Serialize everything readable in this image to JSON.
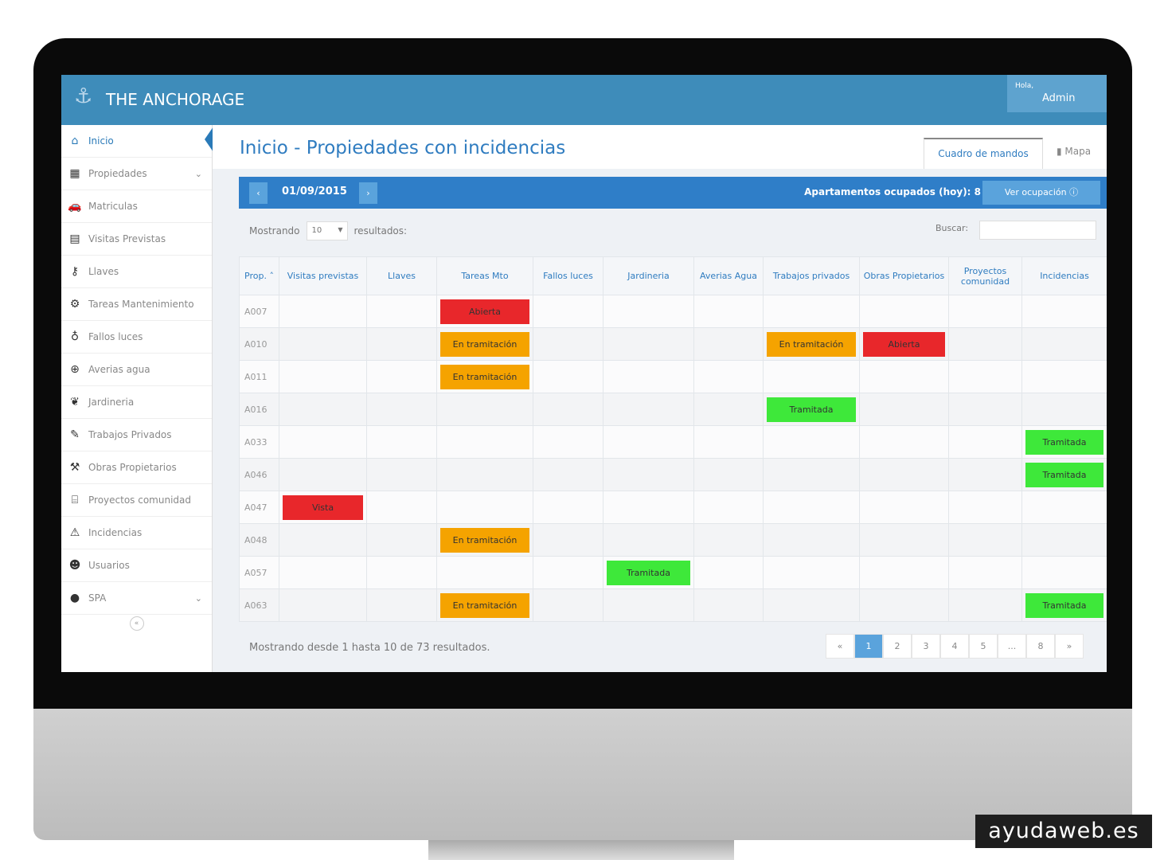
{
  "app": {
    "brand": "THE ANCHORAGE",
    "greeting": "Hola,",
    "user": "Admin"
  },
  "sidebar": {
    "items": [
      {
        "label": "Inicio",
        "icon": "home-icon",
        "glyph": "⌂",
        "active": true
      },
      {
        "label": "Propiedades",
        "icon": "building-icon",
        "glyph": "▦",
        "chevron": true
      },
      {
        "label": "Matriculas",
        "icon": "car-icon",
        "glyph": "🚗"
      },
      {
        "label": "Visitas Previstas",
        "icon": "calendar-icon",
        "glyph": "▤"
      },
      {
        "label": "Llaves",
        "icon": "key-icon",
        "glyph": "⚷"
      },
      {
        "label": "Tareas Mantenimiento",
        "icon": "gear-icon",
        "glyph": "⚙"
      },
      {
        "label": "Fallos luces",
        "icon": "lightbulb-icon",
        "glyph": "♁"
      },
      {
        "label": "Averias agua",
        "icon": "lifebuoy-icon",
        "glyph": "⊕"
      },
      {
        "label": "Jardineria",
        "icon": "leaf-icon",
        "glyph": "❦"
      },
      {
        "label": "Trabajos Privados",
        "icon": "wrench-icon",
        "glyph": "✎"
      },
      {
        "label": "Obras Propietarios",
        "icon": "hammer-icon",
        "glyph": "⚒"
      },
      {
        "label": "Proyectos comunidad",
        "icon": "bank-icon",
        "glyph": "⌸"
      },
      {
        "label": "Incidencias",
        "icon": "warning-icon",
        "glyph": "⚠"
      },
      {
        "label": "Usuarios",
        "icon": "users-icon",
        "glyph": "☻"
      },
      {
        "label": "SPA",
        "icon": "drop-icon",
        "glyph": "●",
        "chevron": true
      }
    ]
  },
  "main": {
    "title": "Inicio - Propiedades con incidencias",
    "tabs": [
      {
        "label": "Cuadro de mandos"
      },
      {
        "label": "Mapa"
      }
    ],
    "date": "01/09/2015",
    "prev": "‹",
    "next": "›",
    "occupied": "Apartamentos ocupados (hoy): 8",
    "view_occupancy": "Ver ocupación ⓘ",
    "showing_label": "Mostrando",
    "page_size": "10",
    "results_label": "resultados:",
    "search_label": "Buscar:",
    "search_value": "",
    "summary": "Mostrando desde 1 hasta 10 de 73 resultados.",
    "pagination": [
      "«",
      "1",
      "2",
      "3",
      "4",
      "5",
      "...",
      "8",
      "»"
    ],
    "current_page": "1"
  },
  "status_colors": {
    "Abierta": "#e8272b",
    "Vista": "#e8272b",
    "En tramitación": "#f5a300",
    "Tramitada": "#3ee83a"
  },
  "table": {
    "columns": [
      "Prop. ˄",
      "Visitas previstas",
      "Llaves",
      "Tareas Mto",
      "Fallos luces",
      "Jardineria",
      "Averias Agua",
      "Trabajos privados",
      "Obras Propietarios",
      "Proyectos comunidad",
      "Incidencias"
    ],
    "rows": [
      {
        "prop": "A007",
        "cells": [
          "",
          "",
          "Abierta",
          "",
          "",
          "",
          "",
          "",
          "",
          ""
        ]
      },
      {
        "prop": "A010",
        "cells": [
          "",
          "",
          "En tramitación",
          "",
          "",
          "",
          "En tramitación",
          "Abierta",
          "",
          ""
        ]
      },
      {
        "prop": "A011",
        "cells": [
          "",
          "",
          "En tramitación",
          "",
          "",
          "",
          "",
          "",
          "",
          ""
        ]
      },
      {
        "prop": "A016",
        "cells": [
          "",
          "",
          "",
          "",
          "",
          "",
          "Tramitada",
          "",
          "",
          ""
        ]
      },
      {
        "prop": "A033",
        "cells": [
          "",
          "",
          "",
          "",
          "",
          "",
          "",
          "",
          "",
          "Tramitada"
        ]
      },
      {
        "prop": "A046",
        "cells": [
          "",
          "",
          "",
          "",
          "",
          "",
          "",
          "",
          "",
          "Tramitada"
        ]
      },
      {
        "prop": "A047",
        "cells": [
          "Vista",
          "",
          "",
          "",
          "",
          "",
          "",
          "",
          "",
          ""
        ]
      },
      {
        "prop": "A048",
        "cells": [
          "",
          "",
          "En tramitación",
          "",
          "",
          "",
          "",
          "",
          "",
          ""
        ]
      },
      {
        "prop": "A057",
        "cells": [
          "",
          "",
          "",
          "",
          "Tramitada",
          "",
          "",
          "",
          "",
          ""
        ]
      },
      {
        "prop": "A063",
        "cells": [
          "",
          "",
          "En tramitación",
          "",
          "",
          "",
          "",
          "",
          "",
          "Tramitada"
        ]
      }
    ]
  },
  "watermark": "ayudaweb.es"
}
